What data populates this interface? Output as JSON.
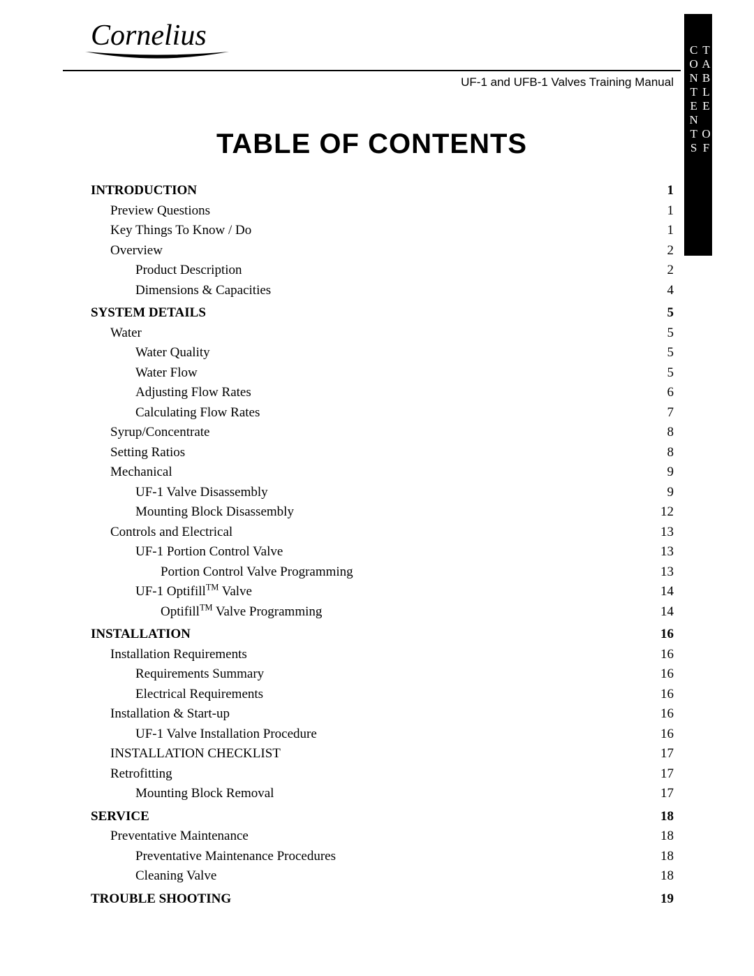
{
  "logo_text": "Cornelius",
  "manual_title": "UF-1 and UFB-1 Valves Training Manual",
  "side_tab": "TABLE OF CONTENTS",
  "toc_title": "TABLE OF CONTENTS",
  "entries": [
    {
      "level": 0,
      "label": "INTRODUCTION",
      "page": "1",
      "page_pad": true
    },
    {
      "level": 1,
      "label": "Preview Questions",
      "page": "1",
      "page_pad": true
    },
    {
      "level": 1,
      "label": "Key Things To Know / Do",
      "page": "1",
      "page_pad": true
    },
    {
      "level": 1,
      "label": "Overview",
      "page": "2",
      "page_pad": true
    },
    {
      "level": 2,
      "label": "Product Description",
      "page": "2"
    },
    {
      "level": 2,
      "label": "Dimensions & Capacities",
      "page": "4"
    },
    {
      "level": 0,
      "label": "SYSTEM DETAILS",
      "page": "5",
      "page_pad": true
    },
    {
      "level": 1,
      "label": "Water",
      "page": "5",
      "page_pad": true
    },
    {
      "level": 2,
      "label": "Water Quality",
      "page": "5"
    },
    {
      "level": 2,
      "label": "Water Flow",
      "page": "5"
    },
    {
      "level": 2,
      "label": "Adjusting Flow Rates",
      "page": "6"
    },
    {
      "level": 2,
      "label": "Calculating Flow Rates",
      "page": "7"
    },
    {
      "level": 1,
      "label": "Syrup/Concentrate",
      "page": "8",
      "page_pad": true
    },
    {
      "level": 1,
      "label": "Setting Ratios",
      "page": "8",
      "page_pad": true
    },
    {
      "level": 1,
      "label": "Mechanical",
      "page": "9",
      "page_pad": true
    },
    {
      "level": 2,
      "label": "UF-1 Valve Disassembly",
      "page": "9"
    },
    {
      "level": 2,
      "label": "Mounting Block Disassembly",
      "page": "12"
    },
    {
      "level": 1,
      "label": "Controls and Electrical",
      "page": "13",
      "page_pad": true
    },
    {
      "level": 2,
      "label": "UF-1 Portion Control Valve",
      "page": "13"
    },
    {
      "level": 3,
      "label": "Portion Control Valve Programming",
      "page": "13",
      "page_pad": true
    },
    {
      "level": 2,
      "label_html": "UF-1 Optifill<sup>TM</sup> Valve",
      "page": "14"
    },
    {
      "level": 3,
      "label_html": "Optifill<sup>TM</sup> Valve Programming",
      "page": "14",
      "page_pad": true
    },
    {
      "level": 0,
      "label": "INSTALLATION",
      "page": "16",
      "page_pad": true
    },
    {
      "level": 1,
      "label": "Installation Requirements",
      "page": "16",
      "page_pad": true
    },
    {
      "level": 2,
      "label": "Requirements Summary",
      "page": "16"
    },
    {
      "level": 2,
      "label": "Electrical Requirements",
      "page": "16"
    },
    {
      "level": 1,
      "label": "Installation & Start-up",
      "page": "16",
      "page_pad": true
    },
    {
      "level": 2,
      "label": "UF-1 Valve Installation Procedure",
      "page": "16"
    },
    {
      "level": 1,
      "label": "INSTALLATION CHECKLIST",
      "page": "17",
      "page_pad": true
    },
    {
      "level": 1,
      "label": "Retrofitting",
      "page": "17",
      "page_pad": true
    },
    {
      "level": 2,
      "label": "Mounting Block Removal",
      "page": "17"
    },
    {
      "level": 0,
      "label": "SERVICE",
      "page": "18",
      "page_pad": true
    },
    {
      "level": 1,
      "label": "Preventative Maintenance",
      "page": "18",
      "page_pad": true
    },
    {
      "level": 2,
      "label": "Preventative Maintenance Procedures",
      "page": "18"
    },
    {
      "level": 2,
      "label": "Cleaning Valve",
      "page": "18"
    },
    {
      "level": 0,
      "label": "TROUBLE SHOOTING",
      "page": "19",
      "page_pad": true
    }
  ]
}
